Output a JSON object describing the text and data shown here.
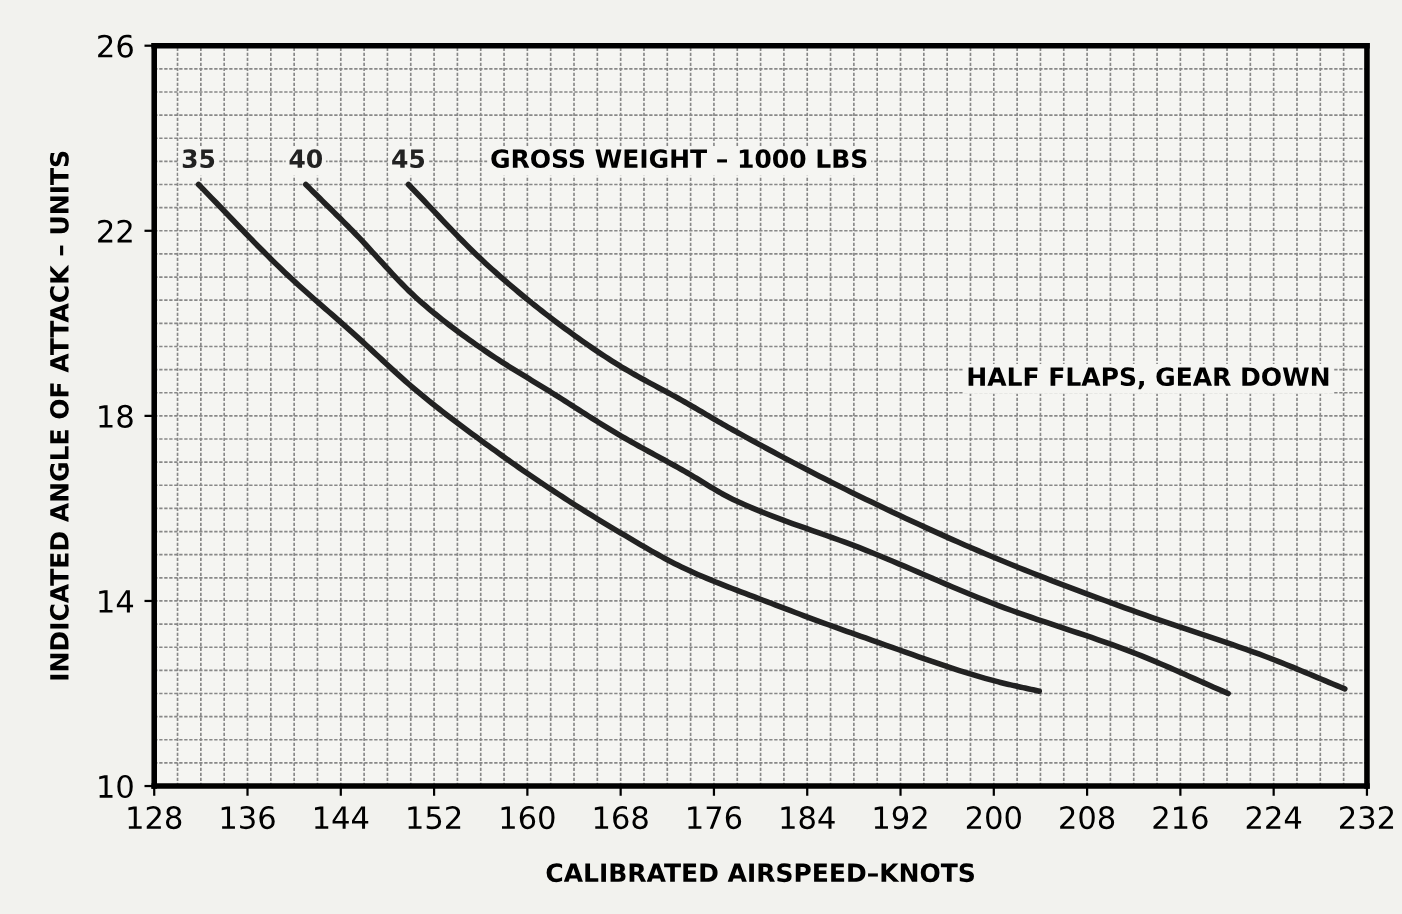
{
  "chart_data": {
    "type": "line",
    "xlabel": "CALIBRATED AIRSPEED–KNOTS",
    "ylabel": "INDICATED ANGLE OF ATTACK – UNITS",
    "legend_title": "GROSS WEIGHT – 1000 LBS",
    "annotations": [
      "HALF FLAPS, GEAR DOWN"
    ],
    "series": [
      {
        "name": "35",
        "color": "#222222",
        "x": [
          131.8,
          139.2,
          145.0,
          150.7,
          156.4,
          162.1,
          167.8,
          173.5,
          180.9,
          189.0,
          200.4,
          203.9
        ],
        "values": [
          23.0,
          21.1,
          19.8,
          18.5,
          17.4,
          16.4,
          15.5,
          14.7,
          13.95,
          13.2,
          12.25,
          12.05
        ]
      },
      {
        "name": "40",
        "color": "#222222",
        "x": [
          141.0,
          145.0,
          150.7,
          156.4,
          162.1,
          167.8,
          173.5,
          177.6,
          189.0,
          200.4,
          211.8,
          220.1
        ],
        "values": [
          23.0,
          22.0,
          20.5,
          19.4,
          18.5,
          17.6,
          16.8,
          16.2,
          15.1,
          13.9,
          12.9,
          12.0
        ]
      },
      {
        "name": "45",
        "color": "#222222",
        "x": [
          149.8,
          156.4,
          162.1,
          167.8,
          173.5,
          177.6,
          189.0,
          200.4,
          211.8,
          223.3,
          230.1
        ],
        "values": [
          23.0,
          21.3,
          20.1,
          19.1,
          18.3,
          17.7,
          16.2,
          14.9,
          13.8,
          12.8,
          12.1
        ]
      }
    ],
    "xlim": [
      128,
      232
    ],
    "xticks": [
      128,
      136,
      144,
      152,
      160,
      168,
      176,
      184,
      192,
      200,
      208,
      216,
      224,
      232
    ],
    "ylim": [
      10,
      26
    ],
    "yticks": [
      10,
      14,
      18,
      22,
      26
    ],
    "grid": true,
    "marker": "none",
    "line_style": "solid"
  }
}
